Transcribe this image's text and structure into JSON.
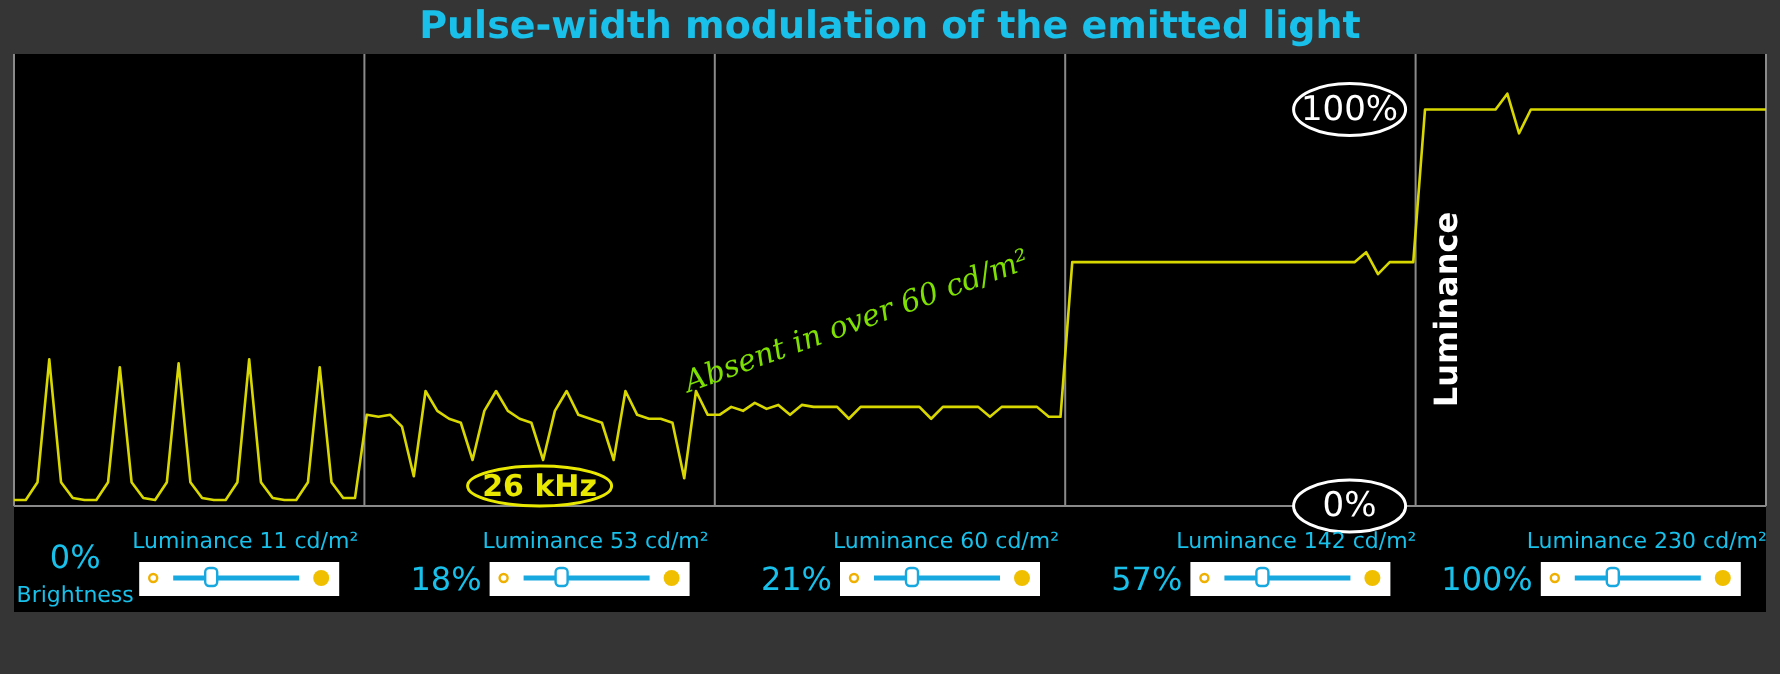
{
  "chart_data": {
    "type": "line",
    "title": "Pulse-width modulation of the emitted light",
    "ylabel": "Luminance",
    "categories": [
      null,
      null,
      null,
      null,
      null,
      null,
      null,
      null,
      null,
      null,
      null,
      null,
      null,
      null,
      null,
      null,
      null,
      null,
      null,
      null,
      null,
      null,
      null,
      null,
      null,
      null,
      null,
      null,
      null,
      null,
      null,
      null,
      null,
      null,
      null,
      null,
      null,
      null,
      null,
      null,
      null,
      null,
      null,
      null,
      null,
      null,
      null,
      null,
      null,
      null,
      null,
      null,
      null,
      null,
      null,
      null,
      null,
      null,
      null,
      null,
      null,
      null,
      null,
      null,
      null,
      null,
      null,
      null,
      null,
      null,
      null,
      null,
      null,
      null,
      null,
      null,
      null,
      null,
      null,
      null,
      null,
      null,
      null,
      null,
      null,
      null,
      null,
      null,
      null,
      null,
      null,
      null,
      null,
      null,
      null,
      null,
      null,
      null,
      null,
      null,
      null,
      null,
      null,
      null,
      null,
      null,
      null,
      null,
      null,
      null,
      null,
      null,
      null,
      null,
      null,
      null,
      null,
      null,
      null,
      null,
      null,
      null,
      null,
      null,
      null,
      null,
      null,
      null,
      null,
      null,
      null,
      null,
      null,
      null,
      null,
      null,
      null,
      null,
      null,
      null,
      null,
      null,
      null,
      null,
      null,
      null,
      null,
      null,
      null,
      null
    ],
    "series": [
      {
        "color": "#d8d800",
        "values": [
          1.5,
          1.5,
          6,
          37,
          6,
          2,
          1.5,
          1.5,
          6,
          35,
          6,
          2,
          1.5,
          6,
          36,
          6,
          2,
          1.5,
          1.5,
          6,
          37,
          6,
          2,
          1.5,
          1.5,
          6,
          35,
          6,
          2,
          2,
          23,
          22.5,
          23,
          20,
          7.5,
          29,
          24,
          22,
          21,
          11.6,
          24,
          29,
          24,
          22,
          21,
          11.6,
          24,
          29,
          23,
          22,
          21,
          11.6,
          29,
          23,
          22,
          22,
          21,
          7,
          29,
          23,
          23,
          25,
          24,
          26,
          24.5,
          25.5,
          23,
          25.5,
          25,
          25,
          25,
          22,
          25,
          25,
          25,
          25,
          25,
          25,
          22,
          25,
          25,
          25,
          25,
          22.5,
          25,
          25,
          25,
          25,
          22.5,
          22.5,
          61.5,
          61.5,
          61.5,
          61.5,
          61.5,
          61.5,
          61.5,
          61.5,
          61.5,
          61.5,
          61.5,
          61.5,
          61.5,
          61.5,
          61.5,
          61.5,
          61.5,
          61.5,
          61.5,
          61.5,
          61.5,
          61.5,
          61.5,
          61.5,
          61.5,
          64,
          58.5,
          61.5,
          61.5,
          61.5,
          100,
          100,
          100,
          100,
          100,
          100,
          100,
          104,
          94,
          100,
          100,
          100,
          100,
          100,
          100,
          100,
          100,
          100,
          100,
          100,
          100,
          100,
          100,
          100,
          100,
          100,
          100,
          100,
          100,
          100
        ]
      }
    ],
    "ylim": [
      0,
      114
    ],
    "yticks": [
      {
        "value": 0,
        "label": "0%"
      },
      {
        "value": 100,
        "label": "100%"
      }
    ],
    "grid": "x",
    "marker": "none",
    "line_style": "solid",
    "annotations": [
      "26 kHz",
      "Absent in over 60 cd/m²",
      "Luminance 11 cd/m²",
      "0%",
      "Brightness",
      "Luminance 53 cd/m²",
      "18%",
      "Luminance 60 cd/m²",
      "21%",
      "Luminance 142 cd/m²",
      "57%",
      "Luminance 230 cd/m²",
      "100%"
    ]
  }
}
